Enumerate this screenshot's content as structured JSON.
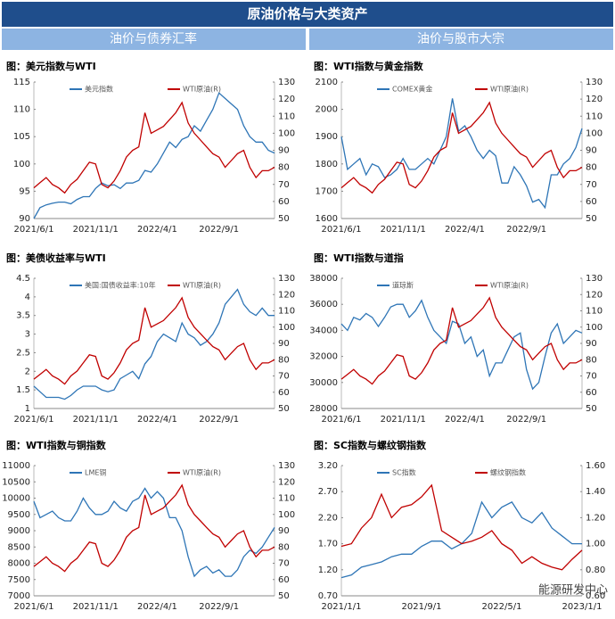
{
  "header": {
    "title": "原油价格与大类资产",
    "tabs": [
      "油价与债券汇率",
      "油价与股市大宗"
    ]
  },
  "watermark": "能源研发中心",
  "chart_data": [
    {
      "type": "line",
      "title": "图：美元指数与WTI",
      "legend": "top",
      "categories": [
        "2021/6/1",
        null,
        null,
        null,
        null,
        null,
        null,
        null,
        null,
        null,
        "2021/11/1",
        null,
        null,
        null,
        null,
        null,
        null,
        null,
        null,
        null,
        "2022/4/1",
        null,
        null,
        null,
        null,
        null,
        null,
        null,
        null,
        null,
        "2022/9/1",
        null,
        null,
        null,
        null,
        null,
        null,
        null,
        null,
        null
      ],
      "series": [
        {
          "name": "美元指数",
          "color": "#2e75b6",
          "values": [
            90,
            92,
            92.5,
            92.8,
            93,
            93,
            92.7,
            93.5,
            94,
            94,
            95.5,
            96.5,
            96,
            96.2,
            95.5,
            96.5,
            96.5,
            97,
            98.8,
            98.5,
            100,
            102,
            104,
            103,
            104.5,
            105,
            107,
            106,
            108,
            110,
            113,
            112,
            111,
            110,
            107,
            105,
            104,
            104,
            102.5,
            102
          ]
        },
        {
          "name": "WTI原油(R)",
          "color": "#c00000",
          "axis": "y2",
          "values": [
            68,
            71,
            74,
            70,
            68,
            65,
            70,
            73,
            78,
            83,
            82,
            70,
            68,
            72,
            78,
            86,
            90,
            92,
            112,
            100,
            102,
            104,
            108,
            112,
            118,
            106,
            100,
            96,
            92,
            88,
            86,
            80,
            84,
            88,
            90,
            80,
            74,
            78,
            78,
            80
          ]
        }
      ],
      "ylim": [
        90,
        115
      ],
      "yticks": [
        90,
        95,
        100,
        105,
        110,
        115
      ],
      "y2lim": [
        50,
        130
      ],
      "y2ticks": [
        50,
        60,
        70,
        80,
        90,
        100,
        110,
        120,
        130
      ]
    },
    {
      "type": "line",
      "title": "图：WTI指数与黄金指数",
      "legend": "top",
      "categories": [
        "2021/6/1",
        null,
        null,
        null,
        null,
        null,
        null,
        null,
        null,
        null,
        "2021/11/1",
        null,
        null,
        null,
        null,
        null,
        null,
        null,
        null,
        null,
        "2022/4/1",
        null,
        null,
        null,
        null,
        null,
        null,
        null,
        null,
        null,
        "2022/9/1",
        null,
        null,
        null,
        null,
        null,
        null,
        null,
        null,
        null
      ],
      "series": [
        {
          "name": "COMEX黄金",
          "color": "#2e75b6",
          "values": [
            1900,
            1780,
            1800,
            1820,
            1760,
            1800,
            1790,
            1750,
            1760,
            1780,
            1820,
            1780,
            1780,
            1800,
            1820,
            1800,
            1850,
            1900,
            2040,
            1920,
            1940,
            1900,
            1850,
            1820,
            1850,
            1830,
            1730,
            1730,
            1790,
            1760,
            1720,
            1660,
            1670,
            1640,
            1760,
            1760,
            1800,
            1820,
            1860,
            1930
          ]
        },
        {
          "name": "WTI原油(R)",
          "color": "#c00000",
          "axis": "y2",
          "values": [
            68,
            71,
            74,
            70,
            68,
            65,
            70,
            73,
            78,
            83,
            82,
            70,
            68,
            72,
            78,
            86,
            90,
            92,
            112,
            100,
            102,
            104,
            108,
            112,
            118,
            106,
            100,
            96,
            92,
            88,
            86,
            80,
            84,
            88,
            90,
            80,
            74,
            78,
            78,
            80
          ]
        }
      ],
      "ylim": [
        1600,
        2100
      ],
      "yticks": [
        1600,
        1700,
        1800,
        1900,
        2000,
        2100
      ],
      "y2lim": [
        50,
        130
      ],
      "y2ticks": [
        50,
        60,
        70,
        80,
        90,
        100,
        110,
        120,
        130
      ]
    },
    {
      "type": "line",
      "title": "图：美债收益率与WTI",
      "legend": "top",
      "categories": [
        "2021/6/1",
        null,
        null,
        null,
        null,
        null,
        null,
        null,
        null,
        null,
        "2021/11/1",
        null,
        null,
        null,
        null,
        null,
        null,
        null,
        null,
        null,
        "2022/4/1",
        null,
        null,
        null,
        null,
        null,
        null,
        null,
        null,
        null,
        "2022/9/1",
        null,
        null,
        null,
        null,
        null,
        null,
        null,
        null,
        null
      ],
      "series": [
        {
          "name": "美国:国债收益率:10年",
          "color": "#2e75b6",
          "values": [
            1.6,
            1.45,
            1.3,
            1.3,
            1.3,
            1.25,
            1.35,
            1.5,
            1.6,
            1.6,
            1.6,
            1.5,
            1.45,
            1.5,
            1.8,
            1.9,
            2.0,
            1.8,
            2.2,
            2.4,
            2.8,
            3.0,
            2.9,
            2.8,
            3.3,
            3.0,
            2.9,
            2.7,
            2.8,
            3.0,
            3.3,
            3.8,
            4.0,
            4.2,
            3.8,
            3.6,
            3.5,
            3.7,
            3.5,
            3.5
          ]
        },
        {
          "name": "WTI原油(R)",
          "color": "#c00000",
          "axis": "y2",
          "values": [
            68,
            71,
            74,
            70,
            68,
            65,
            70,
            73,
            78,
            83,
            82,
            70,
            68,
            72,
            78,
            86,
            90,
            92,
            112,
            100,
            102,
            104,
            108,
            112,
            118,
            106,
            100,
            96,
            92,
            88,
            86,
            80,
            84,
            88,
            90,
            80,
            74,
            78,
            78,
            80
          ]
        }
      ],
      "ylim": [
        1,
        4.5
      ],
      "yticks": [
        1,
        1.5,
        2,
        2.5,
        3,
        3.5,
        4,
        4.5
      ],
      "y2lim": [
        50,
        130
      ],
      "y2ticks": [
        50,
        60,
        70,
        80,
        90,
        100,
        110,
        120,
        130
      ]
    },
    {
      "type": "line",
      "title": "图：WTI指数与道指",
      "legend": "top",
      "categories": [
        "2021/6/1",
        null,
        null,
        null,
        null,
        null,
        null,
        null,
        null,
        null,
        "2021/11/1",
        null,
        null,
        null,
        null,
        null,
        null,
        null,
        null,
        null,
        "2022/4/1",
        null,
        null,
        null,
        null,
        null,
        null,
        null,
        null,
        null,
        "2022/9/1",
        null,
        null,
        null,
        null,
        null,
        null,
        null,
        null,
        null
      ],
      "series": [
        {
          "name": "道琼斯",
          "color": "#2e75b6",
          "values": [
            34500,
            34000,
            35000,
            34800,
            35300,
            35000,
            34300,
            35000,
            35800,
            36000,
            36000,
            35000,
            35500,
            36300,
            35000,
            34000,
            33500,
            33000,
            34700,
            34500,
            33000,
            33500,
            32000,
            32500,
            30500,
            31500,
            31500,
            32500,
            33500,
            33800,
            31000,
            29500,
            30000,
            32000,
            33800,
            34500,
            33000,
            33500,
            34000,
            33800
          ]
        },
        {
          "name": "WTI原油(R)",
          "color": "#c00000",
          "axis": "y2",
          "values": [
            68,
            71,
            74,
            70,
            68,
            65,
            70,
            73,
            78,
            83,
            82,
            70,
            68,
            72,
            78,
            86,
            90,
            92,
            112,
            100,
            102,
            104,
            108,
            112,
            118,
            106,
            100,
            96,
            92,
            88,
            86,
            80,
            84,
            88,
            90,
            80,
            74,
            78,
            78,
            80
          ]
        }
      ],
      "ylim": [
        28000,
        38000
      ],
      "yticks": [
        28000,
        30000,
        32000,
        34000,
        36000,
        38000
      ],
      "y2lim": [
        50,
        130
      ],
      "y2ticks": [
        50,
        60,
        70,
        80,
        90,
        100,
        110,
        120,
        130
      ]
    },
    {
      "type": "line",
      "title": "图：WTI指数与铜指数",
      "legend": "top",
      "categories": [
        "2021/6/1",
        null,
        null,
        null,
        null,
        null,
        null,
        null,
        null,
        null,
        "2021/11/1",
        null,
        null,
        null,
        null,
        null,
        null,
        null,
        null,
        null,
        "2022/4/1",
        null,
        null,
        null,
        null,
        null,
        null,
        null,
        null,
        null,
        "2022/9/1",
        null,
        null,
        null,
        null,
        null,
        null,
        null,
        null,
        null
      ],
      "series": [
        {
          "name": "LME铜",
          "color": "#2e75b6",
          "values": [
            9900,
            9400,
            9500,
            9600,
            9400,
            9300,
            9300,
            9600,
            10000,
            9700,
            9500,
            9500,
            9600,
            9900,
            9700,
            9600,
            9900,
            10000,
            10300,
            10000,
            10200,
            10000,
            9400,
            9400,
            9000,
            8200,
            7600,
            7800,
            7900,
            7700,
            7800,
            7600,
            7600,
            7800,
            8200,
            8400,
            8300,
            8500,
            8800,
            9100
          ]
        },
        {
          "name": "WTI原油(R)",
          "color": "#c00000",
          "axis": "y2",
          "values": [
            68,
            71,
            74,
            70,
            68,
            65,
            70,
            73,
            78,
            83,
            82,
            70,
            68,
            72,
            78,
            86,
            90,
            92,
            112,
            100,
            102,
            104,
            108,
            112,
            118,
            106,
            100,
            96,
            92,
            88,
            86,
            80,
            84,
            88,
            90,
            80,
            74,
            78,
            78,
            80
          ]
        }
      ],
      "ylim": [
        7000,
        11000
      ],
      "yticks": [
        7000,
        7500,
        8000,
        8500,
        9000,
        9500,
        10000,
        10500,
        11000
      ],
      "y2lim": [
        50,
        130
      ],
      "y2ticks": [
        50,
        60,
        70,
        80,
        90,
        100,
        110,
        120,
        130
      ]
    },
    {
      "type": "line",
      "title": "图：SC指数与螺纹钢指数",
      "legend": "top",
      "categories": [
        "2021/1/1",
        null,
        null,
        null,
        null,
        null,
        null,
        null,
        "2021/9/1",
        null,
        null,
        null,
        null,
        null,
        null,
        null,
        "2022/5/1",
        null,
        null,
        null,
        null,
        null,
        null,
        null,
        "2023/1/1"
      ],
      "series": [
        {
          "name": "SC指数",
          "color": "#2e75b6",
          "values": [
            1.05,
            1.1,
            1.25,
            1.3,
            1.35,
            1.45,
            1.5,
            1.5,
            1.65,
            1.75,
            1.75,
            1.6,
            1.7,
            1.9,
            2.5,
            2.2,
            2.4,
            2.5,
            2.2,
            2.1,
            2.3,
            2.0,
            1.85,
            1.7,
            1.7
          ]
        },
        {
          "name": "螺纹钢指数",
          "color": "#c00000",
          "axis": "y2",
          "values": [
            0.98,
            1.0,
            1.12,
            1.2,
            1.38,
            1.2,
            1.28,
            1.3,
            1.36,
            1.45,
            1.1,
            1.05,
            1.0,
            1.02,
            1.05,
            1.1,
            1.0,
            0.95,
            0.85,
            0.9,
            0.85,
            0.82,
            0.8,
            0.88,
            0.95
          ]
        }
      ],
      "ylim": [
        0.7,
        3.2
      ],
      "yticks": [
        {
          "value": 0.7,
          "label": "0.70"
        },
        {
          "value": 1.2,
          "label": "1.20"
        },
        {
          "value": 1.7,
          "label": "1.70"
        },
        {
          "value": 2.2,
          "label": "2.20"
        },
        {
          "value": 2.7,
          "label": "2.70"
        },
        {
          "value": 3.2,
          "label": "3.20"
        }
      ],
      "y2lim": [
        0.6,
        1.6
      ],
      "y2ticks": [
        {
          "value": 0.6,
          "label": "0.60"
        },
        {
          "value": 0.8,
          "label": "0.80"
        },
        {
          "value": 1.0,
          "label": "1.00"
        },
        {
          "value": 1.2,
          "label": "1.20"
        },
        {
          "value": 1.4,
          "label": "1.40"
        },
        {
          "value": 1.6,
          "label": "1.60"
        }
      ]
    }
  ]
}
